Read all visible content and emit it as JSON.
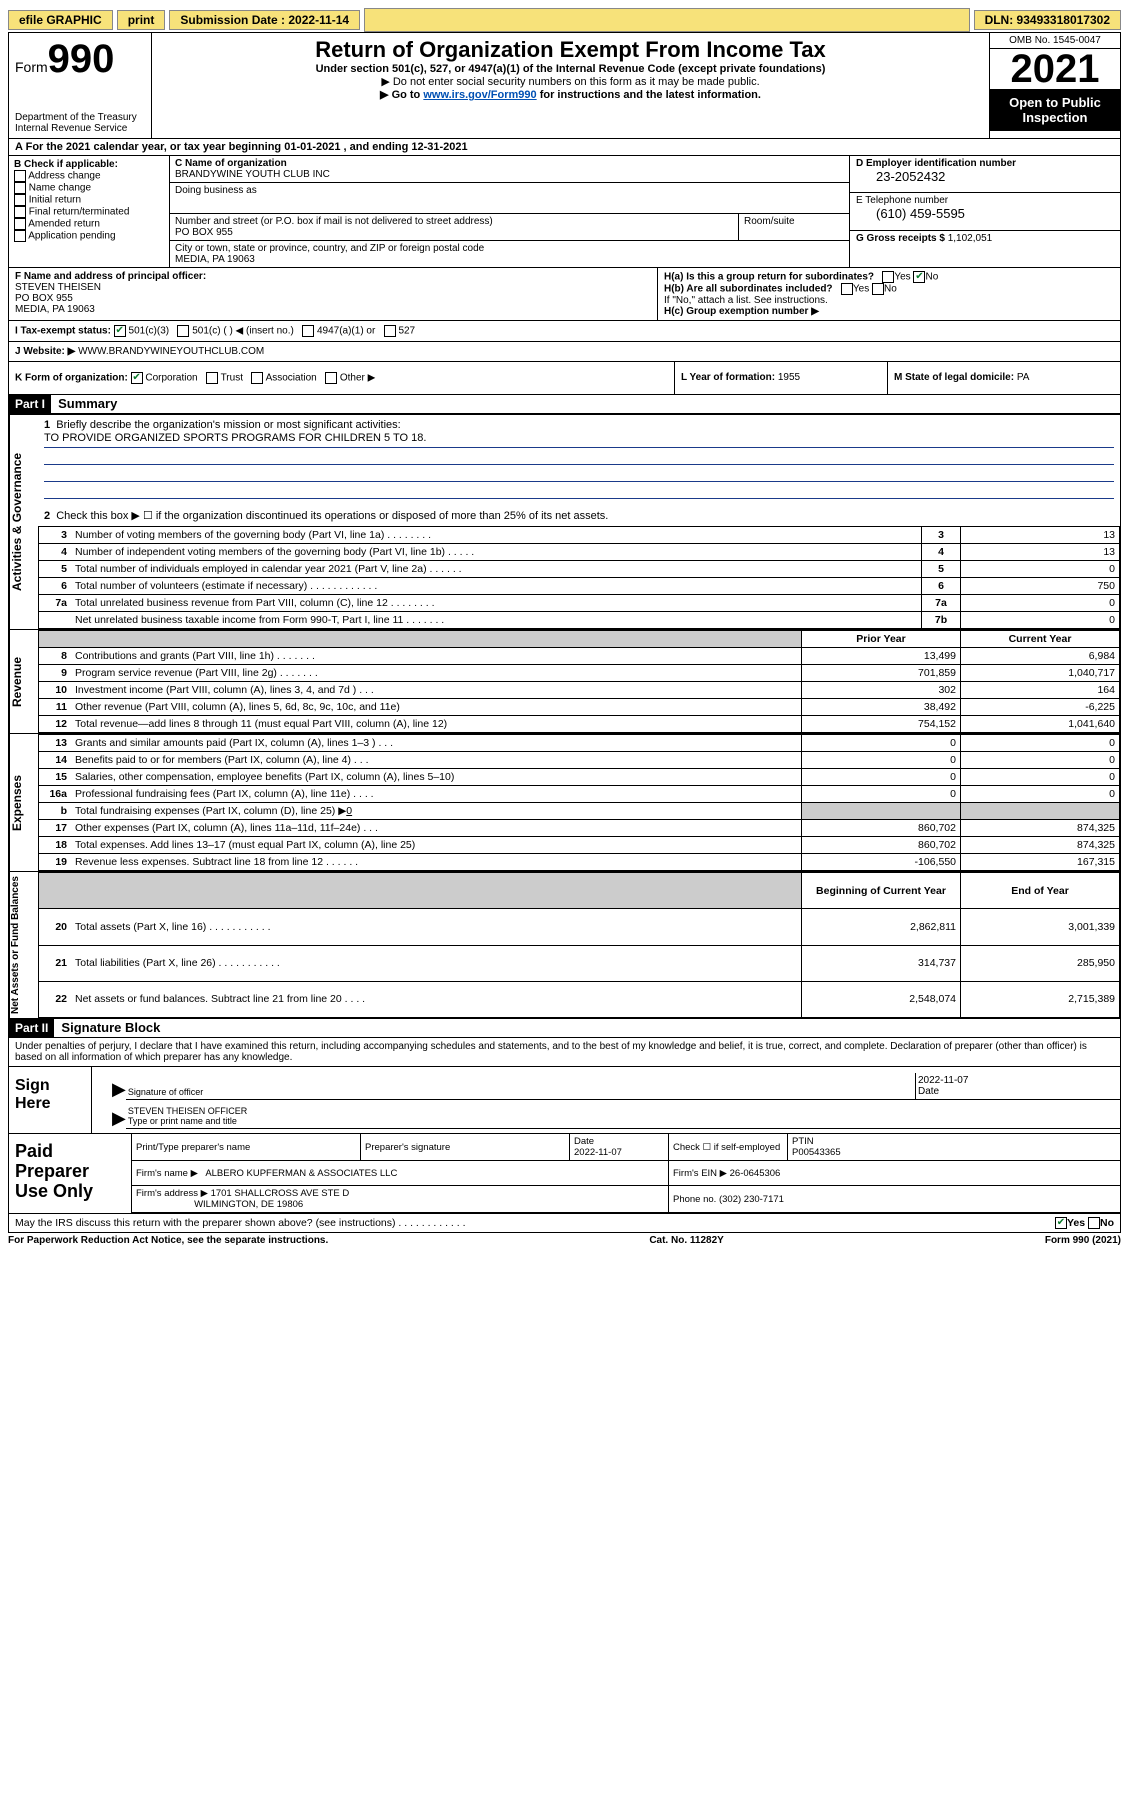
{
  "topbar": {
    "efile": "efile GRAPHIC",
    "print": "print",
    "subdate_label": "Submission Date : 2022-11-14",
    "dln": "DLN: 93493318017302"
  },
  "header": {
    "form_label": "Form",
    "form_num": "990",
    "dept": "Department of the Treasury Internal Revenue Service",
    "title": "Return of Organization Exempt From Income Tax",
    "subtitle": "Under section 501(c), 527, or 4947(a)(1) of the Internal Revenue Code (except private foundations)",
    "note1": "▶ Do not enter social security numbers on this form as it may be made public.",
    "note2a": "▶ Go to ",
    "note2link": "www.irs.gov/Form990",
    "note2b": " for instructions and the latest information.",
    "omb": "OMB No. 1545-0047",
    "year": "2021",
    "open": "Open to Public Inspection"
  },
  "line_a": {
    "text_a": "For the 2021 calendar year, or tax year beginning ",
    "begin": "01-01-2021",
    "text_b": " , and ending ",
    "end": "12-31-2021"
  },
  "boxB": {
    "label": "B Check if applicable:",
    "items": [
      "Address change",
      "Name change",
      "Initial return",
      "Final return/terminated",
      "Amended return",
      "Application pending"
    ]
  },
  "boxC": {
    "name_label": "C Name of organization",
    "name": "BRANDYWINE YOUTH CLUB INC",
    "dba_label": "Doing business as",
    "street_label": "Number and street (or P.O. box if mail is not delivered to street address)",
    "suite_label": "Room/suite",
    "street": "PO BOX 955",
    "city_label": "City or town, state or province, country, and ZIP or foreign postal code",
    "city": "MEDIA, PA  19063"
  },
  "boxD": {
    "ein_label": "D Employer identification number",
    "ein": "23-2052432",
    "phone_label": "E Telephone number",
    "phone": "(610) 459-5595",
    "gross_label": "G Gross receipts $",
    "gross": "1,102,051"
  },
  "boxF": {
    "label": "F Name and address of principal officer:",
    "name": "STEVEN THEISEN",
    "street": "PO BOX 955",
    "city": "MEDIA, PA  19063"
  },
  "boxH": {
    "ha": "H(a)  Is this a group return for subordinates?",
    "yes": "Yes",
    "no": "No",
    "hb": "H(b)  Are all subordinates included?",
    "hb_note": "If \"No,\" attach a list. See instructions.",
    "hc": "H(c)  Group exemption number ▶"
  },
  "boxI": {
    "label": "I    Tax-exempt status:",
    "o1": "501(c)(3)",
    "o2": "501(c) (  ) ◀ (insert no.)",
    "o3": "4947(a)(1) or",
    "o4": "527"
  },
  "boxJ": {
    "label": "J   Website: ▶",
    "site": "WWW.BRANDYWINEYOUTHCLUB.COM"
  },
  "boxK": {
    "label": "K Form of organization:",
    "o1": "Corporation",
    "o2": "Trust",
    "o3": "Association",
    "o4": "Other ▶"
  },
  "boxL": {
    "label": "L Year of formation:",
    "val": "1955"
  },
  "boxM": {
    "label": "M State of legal domicile:",
    "val": "PA"
  },
  "part1": {
    "header": "Part I",
    "title": "Summary",
    "side_gov": "Activities & Governance",
    "side_rev": "Revenue",
    "side_exp": "Expenses",
    "side_net": "Net Assets or Fund Balances",
    "line1_label": "Briefly describe the organization's mission or most significant activities:",
    "mission": "TO PROVIDE ORGANIZED SPORTS PROGRAMS FOR CHILDREN 5 TO 18.",
    "line2": "Check this box ▶ ☐  if the organization discontinued its operations or disposed of more than 25% of its net assets.",
    "rows_gov": [
      {
        "n": "3",
        "desc": "Number of voting members of the governing body (Part VI, line 1a)  .    .    .    .    .    .    .    .",
        "box": "3",
        "val": "13"
      },
      {
        "n": "4",
        "desc": "Number of independent voting members of the governing body (Part VI, line 1b)  .    .    .    .    .",
        "box": "4",
        "val": "13"
      },
      {
        "n": "5",
        "desc": "Total number of individuals employed in calendar year 2021 (Part V, line 2a)  .    .    .    .    .    .",
        "box": "5",
        "val": "0"
      },
      {
        "n": "6",
        "desc": "Total number of volunteers (estimate if necessary)   .    .    .    .    .    .    .    .    .    .    .    .",
        "box": "6",
        "val": "750"
      },
      {
        "n": "7a",
        "desc": "Total unrelated business revenue from Part VIII, column (C), line 12  .    .    .    .    .    .    .    .",
        "box": "7a",
        "val": "0"
      },
      {
        "n": "",
        "desc": "Net unrelated business taxable income from Form 990-T, Part I, line 11    .    .    .    .    .    .    .",
        "box": "7b",
        "val": "0"
      }
    ],
    "head_prior": "Prior Year",
    "head_current": "Current Year",
    "rows_rev": [
      {
        "n": "8",
        "desc": "Contributions and grants (Part VIII, line 1h)    .    .    .    .    .    .    .",
        "prior": "13,499",
        "cur": "6,984"
      },
      {
        "n": "9",
        "desc": "Program service revenue (Part VIII, line 2g)    .    .    .    .    .    .    .",
        "prior": "701,859",
        "cur": "1,040,717"
      },
      {
        "n": "10",
        "desc": "Investment income (Part VIII, column (A), lines 3, 4, and 7d )    .    .    .",
        "prior": "302",
        "cur": "164"
      },
      {
        "n": "11",
        "desc": "Other revenue (Part VIII, column (A), lines 5, 6d, 8c, 9c, 10c, and 11e)",
        "prior": "38,492",
        "cur": "-6,225"
      },
      {
        "n": "12",
        "desc": "Total revenue—add lines 8 through 11 (must equal Part VIII, column (A), line 12)",
        "prior": "754,152",
        "cur": "1,041,640"
      }
    ],
    "rows_exp": [
      {
        "n": "13",
        "desc": "Grants and similar amounts paid (Part IX, column (A), lines 1–3 )    .    .    .",
        "prior": "0",
        "cur": "0"
      },
      {
        "n": "14",
        "desc": "Benefits paid to or for members (Part IX, column (A), line 4)    .    .    .",
        "prior": "0",
        "cur": "0"
      },
      {
        "n": "15",
        "desc": "Salaries, other compensation, employee benefits (Part IX, column (A), lines 5–10)",
        "prior": "0",
        "cur": "0"
      },
      {
        "n": "16a",
        "desc": "Professional fundraising fees (Part IX, column (A), line 11e)    .    .    .    .",
        "prior": "0",
        "cur": "0"
      }
    ],
    "row16b": {
      "n": "b",
      "desc": "Total fundraising expenses (Part IX, column (D), line 25) ▶",
      "val": "0"
    },
    "rows_exp2": [
      {
        "n": "17",
        "desc": "Other expenses (Part IX, column (A), lines 11a–11d, 11f–24e)    .    .    .",
        "prior": "860,702",
        "cur": "874,325"
      },
      {
        "n": "18",
        "desc": "Total expenses. Add lines 13–17 (must equal Part IX, column (A), line 25)",
        "prior": "860,702",
        "cur": "874,325"
      },
      {
        "n": "19",
        "desc": "Revenue less expenses. Subtract line 18 from line 12   .   .   .   .   .   .",
        "prior": "-106,550",
        "cur": "167,315"
      }
    ],
    "head_beg": "Beginning of Current Year",
    "head_end": "End of Year",
    "rows_net": [
      {
        "n": "20",
        "desc": "Total assets (Part X, line 16)   .    .    .    .    .    .    .    .    .    .    .",
        "prior": "2,862,811",
        "cur": "3,001,339"
      },
      {
        "n": "21",
        "desc": "Total liabilities (Part X, line 26)  .    .    .    .    .    .    .    .    .    .    .",
        "prior": "314,737",
        "cur": "285,950"
      },
      {
        "n": "22",
        "desc": "Net assets or fund balances. Subtract line 21 from line 20    .    .    .    .",
        "prior": "2,548,074",
        "cur": "2,715,389"
      }
    ]
  },
  "part2": {
    "header": "Part II",
    "title": "Signature Block",
    "declare": "Under penalties of perjury, I declare that I have examined this return, including accompanying schedules and statements, and to the best of my knowledge and belief, it is true, correct, and complete. Declaration of preparer (other than officer) is based on all information of which preparer has any knowledge.",
    "sign_here": "Sign Here",
    "sig_officer": "Signature of officer",
    "sig_date": "2022-11-07",
    "date_lbl": "Date",
    "name_title": "STEVEN THEISEN  OFFICER",
    "name_title_lbl": "Type or print name and title",
    "paid": "Paid Preparer Use Only",
    "prep_name_lbl": "Print/Type preparer's name",
    "prep_sig_lbl": "Preparer's signature",
    "prep_date_lbl": "Date",
    "prep_date": "2022-11-07",
    "check_self": "Check ☐ if self-employed",
    "ptin_lbl": "PTIN",
    "ptin": "P00543365",
    "firm_name_lbl": "Firm's name     ▶",
    "firm_name": "ALBERO KUPFERMAN & ASSOCIATES LLC",
    "firm_ein_lbl": "Firm's EIN ▶",
    "firm_ein": "26-0645306",
    "firm_addr_lbl": "Firm's address ▶",
    "firm_addr1": "1701 SHALLCROSS AVE STE D",
    "firm_addr2": "WILMINGTON, DE  19806",
    "firm_phone_lbl": "Phone no.",
    "firm_phone": "(302) 230-7171",
    "discuss": "May the IRS discuss this return with the preparer shown above? (see instructions)   .    .    .    .    .    .    .    .    .    .    .    .",
    "yes": "Yes",
    "no": "No"
  },
  "footer": {
    "left": "For Paperwork Reduction Act Notice, see the separate instructions.",
    "mid": "Cat. No. 11282Y",
    "right": "Form 990 (2021)"
  }
}
